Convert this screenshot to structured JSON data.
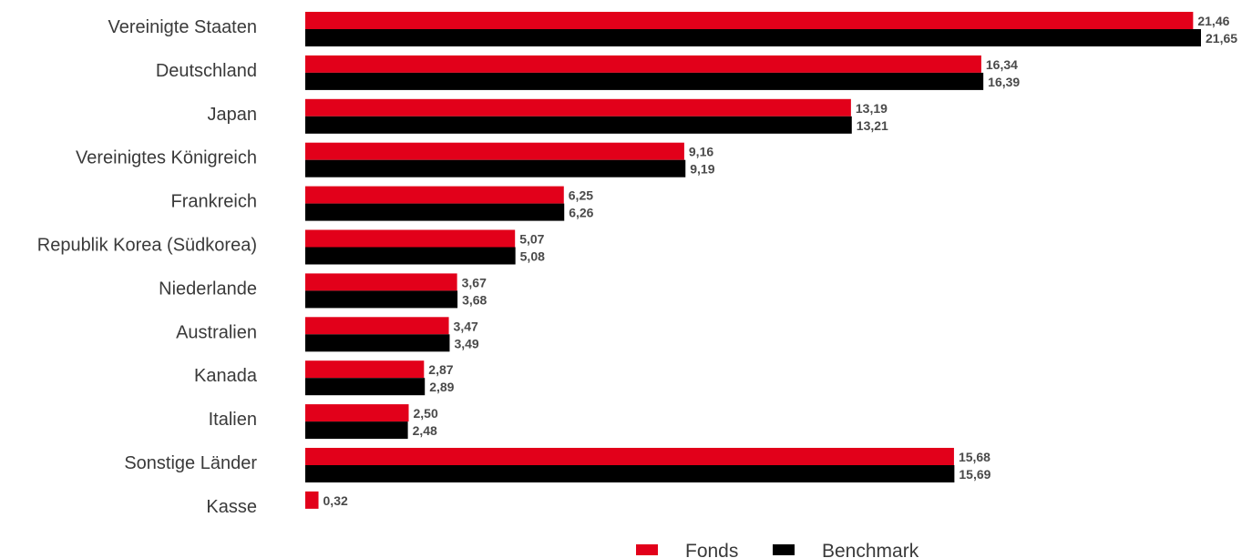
{
  "chart_data": {
    "type": "bar",
    "orientation": "horizontal",
    "categories": [
      "Vereinigte Staaten",
      "Deutschland",
      "Japan",
      "Vereinigtes Königreich",
      "Frankreich",
      "Republik Korea (Südkorea)",
      "Niederlande",
      "Australien",
      "Kanada",
      "Italien",
      "Sonstige Länder",
      "Kasse"
    ],
    "series": [
      {
        "name": "Fonds",
        "color": "#e2001a",
        "values": [
          21.46,
          16.34,
          13.19,
          9.16,
          6.25,
          5.07,
          3.67,
          3.47,
          2.87,
          2.5,
          15.68,
          0.32
        ],
        "labels": [
          "21,46",
          "16,34",
          "13,19",
          "9,16",
          "6,25",
          "5,07",
          "3,67",
          "3,47",
          "2,87",
          "2,50",
          "15,68",
          "0,32"
        ]
      },
      {
        "name": "Benchmark",
        "color": "#000000",
        "values": [
          21.65,
          16.39,
          13.21,
          9.19,
          6.26,
          5.08,
          3.68,
          3.49,
          2.89,
          2.48,
          15.69,
          null
        ],
        "labels": [
          "21,65",
          "16,39",
          "13,21",
          "9,19",
          "6,26",
          "5,08",
          "3,68",
          "3,49",
          "2,89",
          "2,48",
          "15,69",
          null
        ]
      }
    ],
    "xlim": [
      0,
      21.65
    ],
    "grid": false,
    "axes_visible": false,
    "legend_position": "bottom"
  }
}
